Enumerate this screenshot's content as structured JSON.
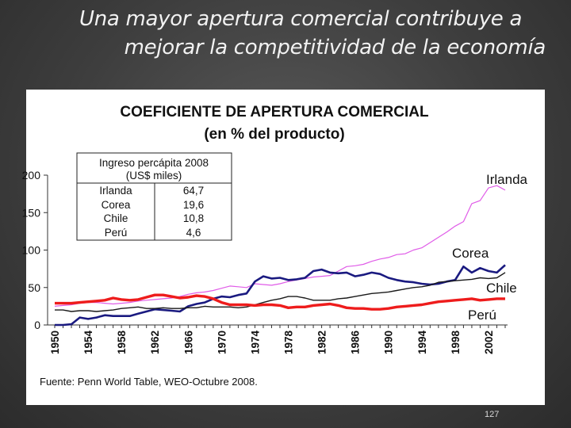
{
  "slide": {
    "title_line1": "Una mayor apertura comercial contribuye a",
    "title_line2": "mejorar la competitividad de la economía",
    "page_number": "127"
  },
  "colors": {
    "Irlanda": "#e05ce8",
    "Corea": "#1a1a80",
    "Chile": "#1a1a1a",
    "Perú": "#ee1c1c"
  },
  "chart_data": {
    "type": "line",
    "title": "COEFICIENTE DE APERTURA COMERCIAL",
    "subtitle": "(en % del producto)",
    "source": "Fuente: Penn World Table, WEO-Octubre 2008.",
    "ylim": [
      0,
      200
    ],
    "yticks": [
      0,
      50,
      100,
      150,
      200
    ],
    "xlim": [
      1950,
      2004
    ],
    "xticks": [
      1950,
      1954,
      1958,
      1962,
      1966,
      1970,
      1974,
      1978,
      1982,
      1986,
      1990,
      1994,
      1998,
      2002
    ],
    "x": [
      1950,
      1951,
      1952,
      1953,
      1954,
      1955,
      1956,
      1957,
      1958,
      1959,
      1960,
      1961,
      1962,
      1963,
      1964,
      1965,
      1966,
      1967,
      1968,
      1969,
      1970,
      1971,
      1972,
      1973,
      1974,
      1975,
      1976,
      1977,
      1978,
      1979,
      1980,
      1981,
      1982,
      1983,
      1984,
      1985,
      1986,
      1987,
      1988,
      1989,
      1990,
      1991,
      1992,
      1993,
      1994,
      1995,
      1996,
      1997,
      1998,
      1999,
      2000,
      2001,
      2002,
      2003,
      2004
    ],
    "series": [
      {
        "name": "Irlanda",
        "values": [
          25,
          26,
          27,
          29,
          30,
          30,
          29,
          28,
          29,
          30,
          32,
          33,
          34,
          35,
          36,
          38,
          41,
          43,
          44,
          46,
          49,
          52,
          51,
          50,
          55,
          54,
          53,
          55,
          58,
          60,
          62,
          64,
          65,
          66,
          72,
          78,
          79,
          81,
          85,
          88,
          90,
          94,
          95,
          100,
          103,
          110,
          117,
          124,
          132,
          138,
          162,
          166,
          183,
          186,
          180
        ]
      },
      {
        "name": "Corea",
        "values": [
          0,
          0,
          1,
          10,
          8,
          10,
          13,
          12,
          12,
          12,
          15,
          18,
          21,
          20,
          19,
          18,
          25,
          28,
          30,
          35,
          38,
          37,
          40,
          42,
          58,
          65,
          62,
          63,
          60,
          61,
          63,
          72,
          74,
          70,
          69,
          70,
          65,
          67,
          70,
          68,
          63,
          60,
          58,
          57,
          55,
          54,
          55,
          58,
          60,
          78,
          70,
          76,
          72,
          70,
          80
        ]
      },
      {
        "name": "Chile",
        "values": [
          20,
          20,
          18,
          19,
          19,
          18,
          19,
          20,
          22,
          23,
          24,
          22,
          22,
          23,
          22,
          22,
          23,
          23,
          25,
          24,
          24,
          24,
          23,
          24,
          27,
          30,
          33,
          35,
          38,
          38,
          36,
          33,
          33,
          33,
          35,
          36,
          38,
          40,
          42,
          43,
          44,
          46,
          48,
          50,
          51,
          53,
          57,
          58,
          59,
          60,
          61,
          63,
          62,
          63,
          70
        ]
      },
      {
        "name": "Perú",
        "values": [
          29,
          29,
          29,
          30,
          31,
          32,
          33,
          36,
          34,
          33,
          34,
          37,
          40,
          40,
          38,
          36,
          37,
          39,
          38,
          35,
          30,
          27,
          27,
          27,
          26,
          27,
          27,
          26,
          23,
          24,
          24,
          26,
          27,
          28,
          26,
          23,
          22,
          22,
          21,
          21,
          22,
          24,
          25,
          26,
          27,
          29,
          31,
          32,
          33,
          34,
          35,
          33,
          34,
          35,
          35
        ]
      }
    ],
    "inset_table": {
      "header_line1": "Ingreso percápita 2008",
      "header_line2": "(US$ miles)",
      "rows": [
        {
          "country": "Irlanda",
          "value": "64,7"
        },
        {
          "country": "Corea",
          "value": "19,6"
        },
        {
          "country": "Chile",
          "value": "10,8"
        },
        {
          "country": "Perú",
          "value": "4,6"
        }
      ]
    },
    "grid": false,
    "legend": "inline labels at right"
  }
}
